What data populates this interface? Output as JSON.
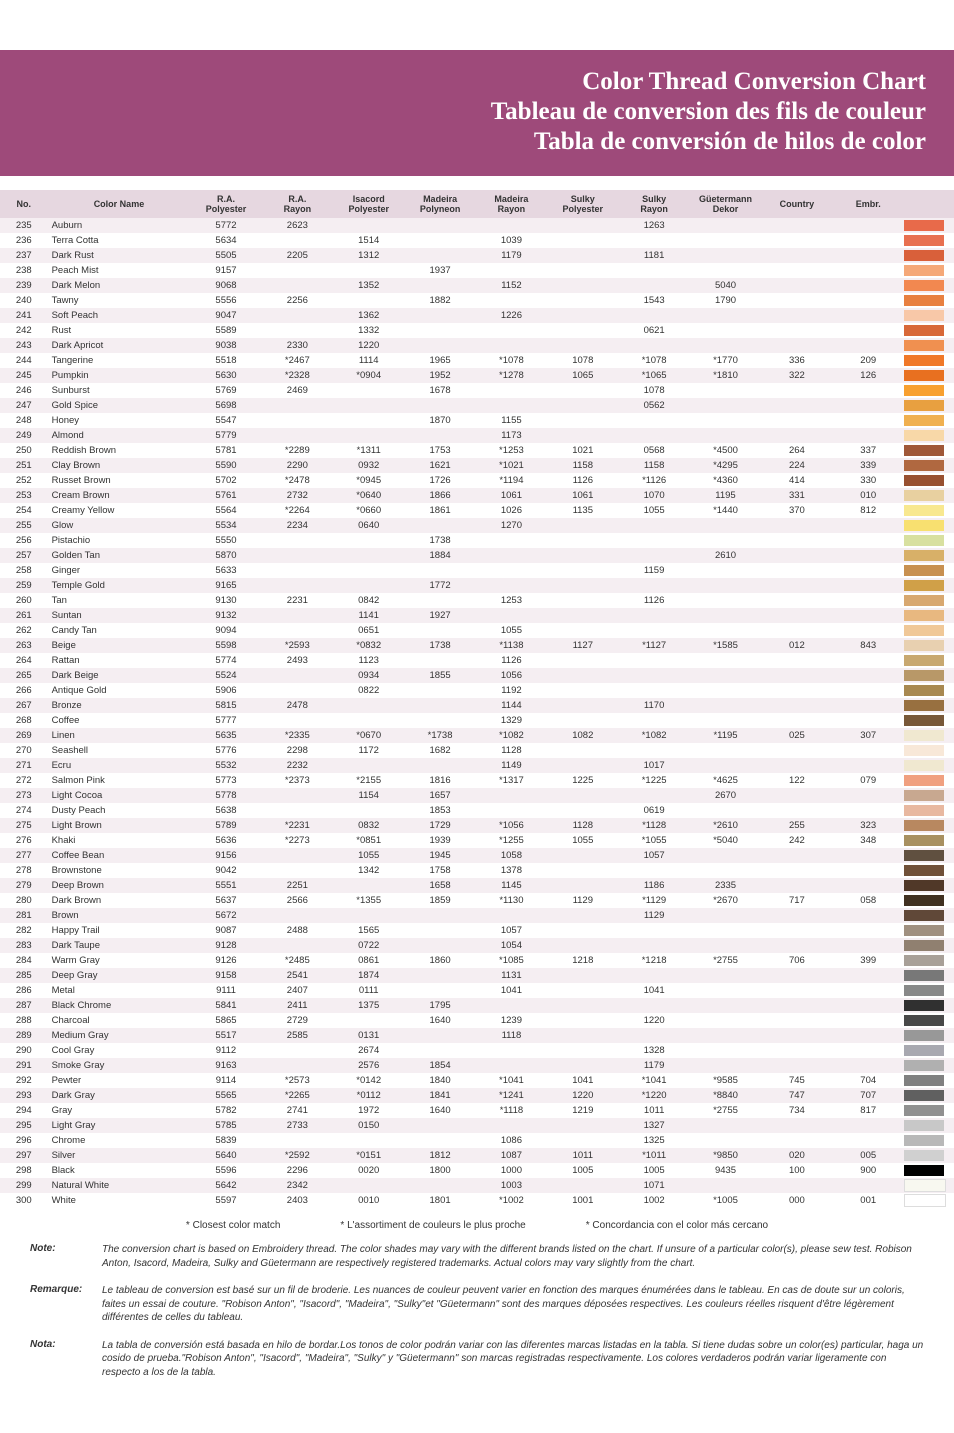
{
  "header": {
    "title_en": "Color Thread Conversion Chart",
    "title_fr": "Tableau de conversion des fils de couleur",
    "title_es": "Tabla de conversión de hilos de color",
    "bg": "#9e4a7a"
  },
  "columns": [
    "No.",
    "Color Name",
    "R.A. Polyester",
    "R.A. Rayon",
    "Isacord Polyester",
    "Madeira Polyneon",
    "Madeira Rayon",
    "Sulky Polyester",
    "Sulky Rayon",
    "Güetermann Dekor",
    "Country",
    "Embr."
  ],
  "header_bg": "#e6d7e0",
  "row_odd_bg": "#f5eef2",
  "row_even_bg": "#ffffff",
  "rows": [
    {
      "no": "235",
      "name": "Auburn",
      "vals": [
        "5772",
        "2623",
        "",
        "",
        "",
        "",
        "1263",
        "",
        "",
        ""
      ],
      "sw": "#e86a4a"
    },
    {
      "no": "236",
      "name": "Terra Cotta",
      "vals": [
        "5634",
        "",
        "1514",
        "",
        "1039",
        "",
        "",
        "",
        "",
        ""
      ],
      "sw": "#e87050"
    },
    {
      "no": "237",
      "name": "Dark Rust",
      "vals": [
        "5505",
        "2205",
        "1312",
        "",
        "1179",
        "",
        "1181",
        "",
        "",
        ""
      ],
      "sw": "#d9603a"
    },
    {
      "no": "238",
      "name": "Peach Mist",
      "vals": [
        "9157",
        "",
        "",
        "1937",
        "",
        "",
        "",
        "",
        "",
        ""
      ],
      "sw": "#f5a878"
    },
    {
      "no": "239",
      "name": "Dark Melon",
      "vals": [
        "9068",
        "",
        "1352",
        "",
        "1152",
        "",
        "",
        "5040",
        "",
        ""
      ],
      "sw": "#f28850"
    },
    {
      "no": "240",
      "name": "Tawny",
      "vals": [
        "5556",
        "2256",
        "",
        "1882",
        "",
        "",
        "1543",
        "1790",
        "",
        ""
      ],
      "sw": "#e88040"
    },
    {
      "no": "241",
      "name": "Soft Peach",
      "vals": [
        "9047",
        "",
        "1362",
        "",
        "1226",
        "",
        "",
        "",
        "",
        ""
      ],
      "sw": "#f8c8a8"
    },
    {
      "no": "242",
      "name": "Rust",
      "vals": [
        "5589",
        "",
        "1332",
        "",
        "",
        "",
        "0621",
        "",
        "",
        ""
      ],
      "sw": "#d86838"
    },
    {
      "no": "243",
      "name": "Dark Apricot",
      "vals": [
        "9038",
        "2330",
        "1220",
        "",
        "",
        "",
        "",
        "",
        "",
        ""
      ],
      "sw": "#f09050"
    },
    {
      "no": "244",
      "name": "Tangerine",
      "vals": [
        "5518",
        "*2467",
        "1114",
        "1965",
        "*1078",
        "1078",
        "*1078",
        "*1770",
        "336",
        "209"
      ],
      "sw": "#f07828"
    },
    {
      "no": "245",
      "name": "Pumpkin",
      "vals": [
        "5630",
        "*2328",
        "*0904",
        "1952",
        "*1278",
        "1065",
        "*1065",
        "*1810",
        "322",
        "126"
      ],
      "sw": "#e87020"
    },
    {
      "no": "246",
      "name": "Sunburst",
      "vals": [
        "5769",
        "2469",
        "",
        "1678",
        "",
        "",
        "1078",
        "",
        "",
        ""
      ],
      "sw": "#f8a030"
    },
    {
      "no": "247",
      "name": "Gold Spice",
      "vals": [
        "5698",
        "",
        "",
        "",
        "",
        "",
        "0562",
        "",
        "",
        ""
      ],
      "sw": "#e8a040"
    },
    {
      "no": "248",
      "name": "Honey",
      "vals": [
        "5547",
        "",
        "",
        "1870",
        "1155",
        "",
        "",
        "",
        "",
        ""
      ],
      "sw": "#f0b050"
    },
    {
      "no": "249",
      "name": "Almond",
      "vals": [
        "5779",
        "",
        "",
        "",
        "1173",
        "",
        "",
        "",
        "",
        ""
      ],
      "sw": "#f8d8a8"
    },
    {
      "no": "250",
      "name": "Reddish Brown",
      "vals": [
        "5781",
        "*2289",
        "*1311",
        "1753",
        "*1253",
        "1021",
        "0568",
        "*4500",
        "264",
        "337"
      ],
      "sw": "#a05838"
    },
    {
      "no": "251",
      "name": "Clay Brown",
      "vals": [
        "5590",
        "2290",
        "0932",
        "1621",
        "*1021",
        "1158",
        "1158",
        "*4295",
        "224",
        "339"
      ],
      "sw": "#b06840"
    },
    {
      "no": "252",
      "name": "Russet Brown",
      "vals": [
        "5702",
        "*2478",
        "*0945",
        "1726",
        "*1194",
        "1126",
        "*1126",
        "*4360",
        "414",
        "330"
      ],
      "sw": "#985030"
    },
    {
      "no": "253",
      "name": "Cream Brown",
      "vals": [
        "5761",
        "2732",
        "*0640",
        "1866",
        "1061",
        "1061",
        "1070",
        "1195",
        "331",
        "010"
      ],
      "sw": "#e8d0a0"
    },
    {
      "no": "254",
      "name": "Creamy Yellow",
      "vals": [
        "5564",
        "*2264",
        "*0660",
        "1861",
        "1026",
        "1135",
        "1055",
        "*1440",
        "370",
        "812"
      ],
      "sw": "#f8e890"
    },
    {
      "no": "255",
      "name": "Glow",
      "vals": [
        "5534",
        "2234",
        "0640",
        "",
        "1270",
        "",
        "",
        "",
        "",
        ""
      ],
      "sw": "#f8e070"
    },
    {
      "no": "256",
      "name": "Pistachio",
      "vals": [
        "5550",
        "",
        "",
        "1738",
        "",
        "",
        "",
        "",
        "",
        ""
      ],
      "sw": "#d8e0a0"
    },
    {
      "no": "257",
      "name": "Golden Tan",
      "vals": [
        "5870",
        "",
        "",
        "1884",
        "",
        "",
        "",
        "2610",
        "",
        ""
      ],
      "sw": "#d8b068"
    },
    {
      "no": "258",
      "name": "Ginger",
      "vals": [
        "5633",
        "",
        "",
        "",
        "",
        "",
        "1159",
        "",
        "",
        ""
      ],
      "sw": "#c89050"
    },
    {
      "no": "259",
      "name": "Temple Gold",
      "vals": [
        "9165",
        "",
        "",
        "1772",
        "",
        "",
        "",
        "",
        "",
        ""
      ],
      "sw": "#d0a048"
    },
    {
      "no": "260",
      "name": "Tan",
      "vals": [
        "9130",
        "2231",
        "0842",
        "",
        "1253",
        "",
        "1126",
        "",
        "",
        ""
      ],
      "sw": "#d8a870"
    },
    {
      "no": "261",
      "name": "Suntan",
      "vals": [
        "9132",
        "",
        "1141",
        "1927",
        "",
        "",
        "",
        "",
        "",
        ""
      ],
      "sw": "#e8b880"
    },
    {
      "no": "262",
      "name": "Candy Tan",
      "vals": [
        "9094",
        "",
        "0651",
        "",
        "1055",
        "",
        "",
        "",
        "",
        ""
      ],
      "sw": "#f0c898"
    },
    {
      "no": "263",
      "name": "Beige",
      "vals": [
        "5598",
        "*2593",
        "*0832",
        "1738",
        "*1138",
        "1127",
        "*1127",
        "*1585",
        "012",
        "843"
      ],
      "sw": "#e8d0b0"
    },
    {
      "no": "264",
      "name": "Rattan",
      "vals": [
        "5774",
        "2493",
        "1123",
        "",
        "1126",
        "",
        "",
        "",
        "",
        ""
      ],
      "sw": "#c8a870"
    },
    {
      "no": "265",
      "name": "Dark Beige",
      "vals": [
        "5524",
        "",
        "0934",
        "1855",
        "1056",
        "",
        "",
        "",
        "",
        ""
      ],
      "sw": "#b89868"
    },
    {
      "no": "266",
      "name": "Antique Gold",
      "vals": [
        "5906",
        "",
        "0822",
        "",
        "1192",
        "",
        "",
        "",
        "",
        ""
      ],
      "sw": "#a88850"
    },
    {
      "no": "267",
      "name": "Bronze",
      "vals": [
        "5815",
        "2478",
        "",
        "",
        "1144",
        "",
        "1170",
        "",
        "",
        ""
      ],
      "sw": "#987040"
    },
    {
      "no": "268",
      "name": "Coffee",
      "vals": [
        "5777",
        "",
        "",
        "",
        "1329",
        "",
        "",
        "",
        "",
        ""
      ],
      "sw": "#785838"
    },
    {
      "no": "269",
      "name": "Linen",
      "vals": [
        "5635",
        "*2335",
        "*0670",
        "*1738",
        "*1082",
        "1082",
        "*1082",
        "*1195",
        "025",
        "307"
      ],
      "sw": "#f0e8d0"
    },
    {
      "no": "270",
      "name": "Seashell",
      "vals": [
        "5776",
        "2298",
        "1172",
        "1682",
        "1128",
        "",
        "",
        "",
        "",
        ""
      ],
      "sw": "#f8e8d8"
    },
    {
      "no": "271",
      "name": "Ecru",
      "vals": [
        "5532",
        "2232",
        "",
        "",
        "1149",
        "",
        "1017",
        "",
        "",
        ""
      ],
      "sw": "#f0e8d0"
    },
    {
      "no": "272",
      "name": "Salmon Pink",
      "vals": [
        "5773",
        "*2373",
        "*2155",
        "1816",
        "*1317",
        "1225",
        "*1225",
        "*4625",
        "122",
        "079"
      ],
      "sw": "#f0a080"
    },
    {
      "no": "273",
      "name": "Light Cocoa",
      "vals": [
        "5778",
        "",
        "1154",
        "1657",
        "",
        "",
        "",
        "2670",
        "",
        ""
      ],
      "sw": "#c8a890"
    },
    {
      "no": "274",
      "name": "Dusty Peach",
      "vals": [
        "5638",
        "",
        "",
        "1853",
        "",
        "",
        "0619",
        "",
        "",
        ""
      ],
      "sw": "#e8b8a0"
    },
    {
      "no": "275",
      "name": "Light Brown",
      "vals": [
        "5789",
        "*2231",
        "0832",
        "1729",
        "*1056",
        "1128",
        "*1128",
        "*2610",
        "255",
        "323"
      ],
      "sw": "#b88860"
    },
    {
      "no": "276",
      "name": "Khaki",
      "vals": [
        "5636",
        "*2273",
        "*0851",
        "1939",
        "*1255",
        "1055",
        "*1055",
        "*5040",
        "242",
        "348"
      ],
      "sw": "#a89060"
    },
    {
      "no": "277",
      "name": "Coffee Bean",
      "vals": [
        "9156",
        "",
        "1055",
        "1945",
        "1058",
        "",
        "1057",
        "",
        "",
        ""
      ],
      "sw": "#605040"
    },
    {
      "no": "278",
      "name": "Brownstone",
      "vals": [
        "9042",
        "",
        "1342",
        "1758",
        "1378",
        "",
        "",
        "",
        "",
        ""
      ],
      "sw": "#705038"
    },
    {
      "no": "279",
      "name": "Deep Brown",
      "vals": [
        "5551",
        "2251",
        "",
        "1658",
        "1145",
        "",
        "1186",
        "2335",
        "",
        ""
      ],
      "sw": "#503828"
    },
    {
      "no": "280",
      "name": "Dark Brown",
      "vals": [
        "5637",
        "2566",
        "*1355",
        "1859",
        "*1130",
        "1129",
        "*1129",
        "*2670",
        "717",
        "058"
      ],
      "sw": "#403020"
    },
    {
      "no": "281",
      "name": "Brown",
      "vals": [
        "5672",
        "",
        "",
        "",
        "",
        "",
        "1129",
        "",
        "",
        ""
      ],
      "sw": "#604838"
    },
    {
      "no": "282",
      "name": "Happy Trail",
      "vals": [
        "9087",
        "2488",
        "1565",
        "",
        "1057",
        "",
        "",
        "",
        "",
        ""
      ],
      "sw": "#a09080"
    },
    {
      "no": "283",
      "name": "Dark Taupe",
      "vals": [
        "9128",
        "",
        "0722",
        "",
        "1054",
        "",
        "",
        "",
        "",
        ""
      ],
      "sw": "#908070"
    },
    {
      "no": "284",
      "name": "Warm Gray",
      "vals": [
        "9126",
        "*2485",
        "0861",
        "1860",
        "*1085",
        "1218",
        "*1218",
        "*2755",
        "706",
        "399"
      ],
      "sw": "#a8a098"
    },
    {
      "no": "285",
      "name": "Deep Gray",
      "vals": [
        "9158",
        "2541",
        "1874",
        "",
        "1131",
        "",
        "",
        "",
        "",
        ""
      ],
      "sw": "#787878"
    },
    {
      "no": "286",
      "name": "Metal",
      "vals": [
        "9111",
        "2407",
        "0111",
        "",
        "1041",
        "",
        "1041",
        "",
        "",
        ""
      ],
      "sw": "#888888"
    },
    {
      "no": "287",
      "name": "Black Chrome",
      "vals": [
        "5841",
        "2411",
        "1375",
        "1795",
        "",
        "",
        "",
        "",
        "",
        ""
      ],
      "sw": "#303030"
    },
    {
      "no": "288",
      "name": "Charcoal",
      "vals": [
        "5865",
        "2729",
        "",
        "1640",
        "1239",
        "",
        "1220",
        "",
        "",
        ""
      ],
      "sw": "#484848"
    },
    {
      "no": "289",
      "name": "Medium Gray",
      "vals": [
        "5517",
        "2585",
        "0131",
        "",
        "1118",
        "",
        "",
        "",
        "",
        ""
      ],
      "sw": "#989898"
    },
    {
      "no": "290",
      "name": "Cool Gray",
      "vals": [
        "9112",
        "",
        "2674",
        "",
        "",
        "",
        "1328",
        "",
        "",
        ""
      ],
      "sw": "#a8a8b0"
    },
    {
      "no": "291",
      "name": "Smoke Gray",
      "vals": [
        "9163",
        "",
        "2576",
        "1854",
        "",
        "",
        "1179",
        "",
        "",
        ""
      ],
      "sw": "#b0b0b0"
    },
    {
      "no": "292",
      "name": "Pewter",
      "vals": [
        "9114",
        "*2573",
        "*0142",
        "1840",
        "*1041",
        "1041",
        "*1041",
        "*9585",
        "745",
        "704"
      ],
      "sw": "#808080"
    },
    {
      "no": "293",
      "name": "Dark Gray",
      "vals": [
        "5565",
        "*2265",
        "*0112",
        "1841",
        "*1241",
        "1220",
        "*1220",
        "*8840",
        "747",
        "707"
      ],
      "sw": "#606060"
    },
    {
      "no": "294",
      "name": "Gray",
      "vals": [
        "5782",
        "2741",
        "1972",
        "1640",
        "*1118",
        "1219",
        "1011",
        "*2755",
        "734",
        "817"
      ],
      "sw": "#909090"
    },
    {
      "no": "295",
      "name": "Light Gray",
      "vals": [
        "5785",
        "2733",
        "0150",
        "",
        "",
        "",
        "1327",
        "",
        "",
        ""
      ],
      "sw": "#c8c8c8"
    },
    {
      "no": "296",
      "name": "Chrome",
      "vals": [
        "5839",
        "",
        "",
        "",
        "1086",
        "",
        "1325",
        "",
        "",
        ""
      ],
      "sw": "#b8b8b8"
    },
    {
      "no": "297",
      "name": "Silver",
      "vals": [
        "5640",
        "*2592",
        "*0151",
        "1812",
        "1087",
        "1011",
        "*1011",
        "*9850",
        "020",
        "005"
      ],
      "sw": "#d0d0d0"
    },
    {
      "no": "298",
      "name": "Black",
      "vals": [
        "5596",
        "2296",
        "0020",
        "1800",
        "1000",
        "1005",
        "1005",
        "9435",
        "100",
        "900"
      ],
      "sw": "#000000"
    },
    {
      "no": "299",
      "name": "Natural White",
      "vals": [
        "5642",
        "2342",
        "",
        "",
        "1003",
        "",
        "1071",
        "",
        "",
        ""
      ],
      "sw": "#f8f8f0"
    },
    {
      "no": "300",
      "name": "White",
      "vals": [
        "5597",
        "2403",
        "0010",
        "1801",
        "*1002",
        "1001",
        "1002",
        "*1005",
        "000",
        "001"
      ],
      "sw": "#ffffff"
    }
  ],
  "legend": {
    "en": "* Closest color match",
    "fr": "* L'assortiment de couleurs le plus proche",
    "es": "* Concordancia con el color más cercano"
  },
  "notes": [
    {
      "label": "Note:",
      "text": "The conversion chart is based on Embroidery thread. The color shades may vary with the different brands listed on the chart. If unsure of a particular color(s), please sew test. Robison Anton, Isacord, Madeira, Sulky and Güetermann are respectively registered trademarks.  Actual colors may vary slightly from the chart."
    },
    {
      "label": "Remarque:",
      "text": "Le tableau de conversion est basé sur un fil de broderie. Les nuances de couleur peuvent varier en fonction des marques énumérées dans le tableau. En cas de doute sur un coloris, faites un essai de couture. \"Robison Anton\", \"Isacord\", \"Madeira\", \"Sulky\"et \"Güetermann\" sont des marques déposées respectives.  Les couleurs réelles risquent d'être légèrement différentes de celles du tableau."
    },
    {
      "label": "Nota:",
      "text": "La tabla de conversión está basada en hilo de bordar.Los tonos de color podrán variar con las diferentes marcas listadas en la tabla. Si tiene dudas sobre un color(es) particular, haga un cosido de prueba.\"Robison Anton\", \"Isacord\", \"Madeira\", \"Sulky\" y \"Güetermann\" son marcas registradas respectivamente. Los colores verdaderos podrán variar ligeramente con respecto a los de la tabla."
    }
  ]
}
